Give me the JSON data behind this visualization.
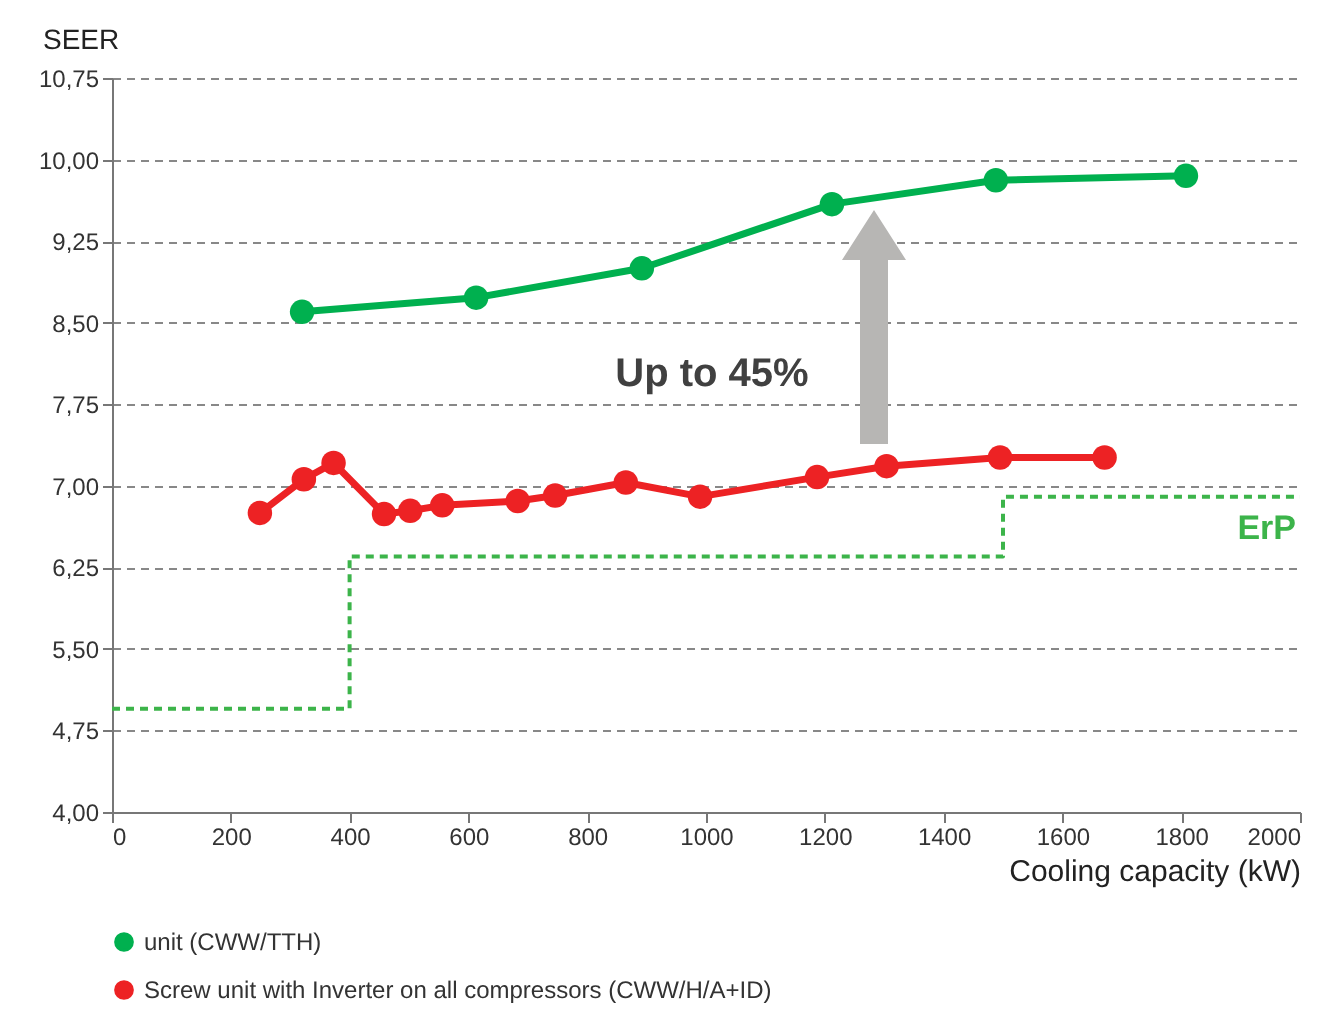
{
  "chart_data": {
    "type": "line",
    "ylabel": "SEER",
    "xlabel": "Cooling capacity (kW)",
    "xlim": [
      0,
      2000
    ],
    "xticks": [
      0,
      200,
      400,
      600,
      800,
      1000,
      1200,
      1400,
      1600,
      1800,
      2000
    ],
    "ylim": [
      4,
      10.75
    ],
    "yticks": [
      {
        "value": 4,
        "label": "4,00"
      },
      {
        "value": 4.75,
        "label": "4,75"
      },
      {
        "value": 5.5,
        "label": "5,50"
      },
      {
        "value": 6.25,
        "label": "6,25"
      },
      {
        "value": 7,
        "label": "7,00"
      },
      {
        "value": 7.75,
        "label": "7,75"
      },
      {
        "value": 8.5,
        "label": "8,50"
      },
      {
        "value": 9.25,
        "label": "9,25"
      },
      {
        "value": 10,
        "label": "10,00"
      },
      {
        "value": 10.75,
        "label": "10,75"
      }
    ],
    "grid": "y",
    "legend": "bottom",
    "marker": "circle",
    "series": [
      {
        "name": "unit (CWW/TTH)",
        "color": "#00b04f",
        "x": [
          320,
          613,
          892,
          1212,
          1488,
          1808
        ],
        "values": [
          8.6,
          8.73,
          9.0,
          9.59,
          9.81,
          9.85
        ]
      },
      {
        "name": "Screw unit with Inverter on all compressors (CWW/H/A+ID)",
        "color": "#ed2224",
        "x": [
          249,
          323,
          373,
          458,
          502,
          556,
          683,
          746,
          865,
          990,
          1187,
          1304,
          1495,
          1671
        ],
        "values": [
          6.75,
          7.06,
          7.21,
          6.74,
          6.77,
          6.82,
          6.86,
          6.91,
          7.03,
          6.9,
          7.08,
          7.18,
          7.26,
          7.26
        ]
      },
      {
        "name": "ErP",
        "type": "step",
        "color": "#3cb44a",
        "line_style": "dashed",
        "marker": "none",
        "x": [
          0,
          400,
          1500,
          2000
        ],
        "values": [
          4.95,
          6.35,
          6.9,
          6.9
        ]
      }
    ],
    "annotations": [
      "Up to 45%"
    ]
  }
}
